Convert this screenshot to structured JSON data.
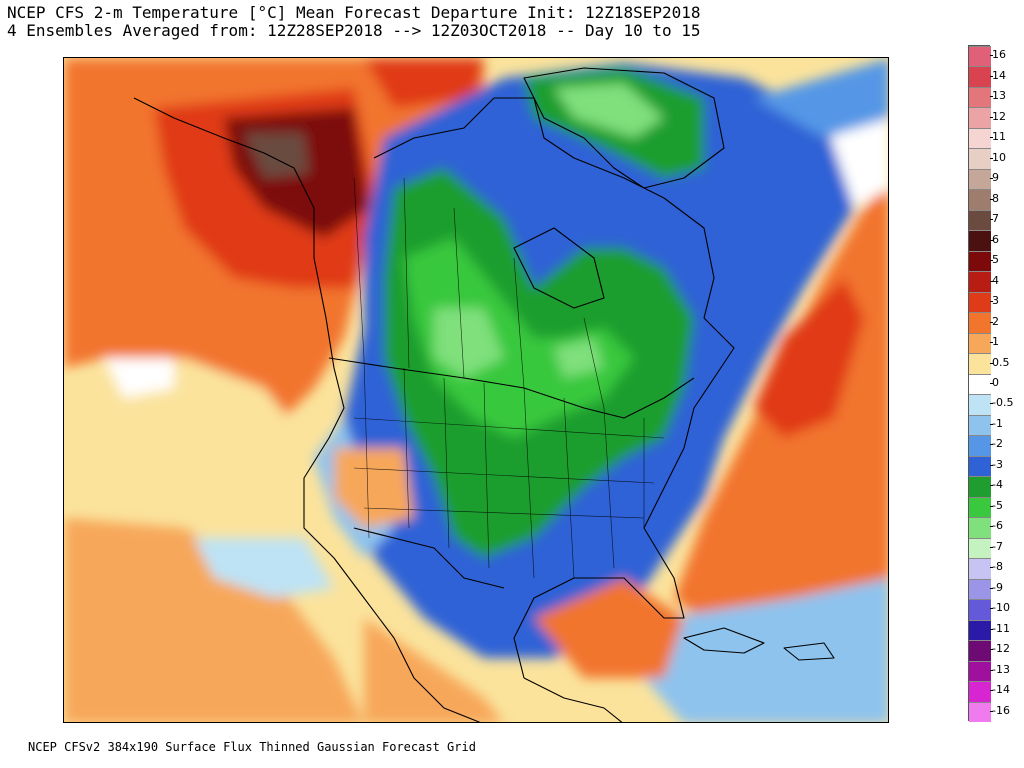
{
  "header": {
    "line1": "NCEP CFS 2-m Temperature [°C] Mean Forecast Departure Init: 12Z18SEP2018",
    "line2": "4 Ensembles Averaged from: 12Z28SEP2018 --> 12Z03OCT2018 -- Day 10 to 15"
  },
  "footer": {
    "text": "NCEP CFSv2 384x190 Surface Flux Thinned Gaussian Forecast Grid"
  },
  "colorbar": {
    "levels": [
      {
        "label": "16",
        "color": "#e0607a"
      },
      {
        "label": "14",
        "color": "#d9434f"
      },
      {
        "label": "13",
        "color": "#e2767a"
      },
      {
        "label": "12",
        "color": "#eca3a6"
      },
      {
        "label": "11",
        "color": "#f6d4d1"
      },
      {
        "label": "10",
        "color": "#e8cfc6"
      },
      {
        "label": "9",
        "color": "#c5a79a"
      },
      {
        "label": "8",
        "color": "#9e7d6f"
      },
      {
        "label": "7",
        "color": "#6b4b40"
      },
      {
        "label": "6",
        "color": "#4b1010"
      },
      {
        "label": "5",
        "color": "#7d0a0a"
      },
      {
        "label": "4",
        "color": "#b71d12"
      },
      {
        "label": "3",
        "color": "#e03b18"
      },
      {
        "label": "2",
        "color": "#f2752d"
      },
      {
        "label": "1",
        "color": "#f7a75a"
      },
      {
        "label": "0.5",
        "color": "#fbe39c"
      },
      {
        "label": "0",
        "color": "#ffffff"
      },
      {
        "label": "-0.5",
        "color": "#bde3f5"
      },
      {
        "label": "-1",
        "color": "#8ec3ee"
      },
      {
        "label": "-2",
        "color": "#5597e6"
      },
      {
        "label": "-3",
        "color": "#2e62d6"
      },
      {
        "label": "-4",
        "color": "#1f9e2f"
      },
      {
        "label": "-5",
        "color": "#39c83e"
      },
      {
        "label": "-6",
        "color": "#7fe07c"
      },
      {
        "label": "-7",
        "color": "#c4f2c0"
      },
      {
        "label": "-8",
        "color": "#c7c4f3"
      },
      {
        "label": "-9",
        "color": "#9b95e8"
      },
      {
        "label": "-10",
        "color": "#6459d8"
      },
      {
        "label": "-11",
        "color": "#2a1aa8"
      },
      {
        "label": "-12",
        "color": "#6e0a74"
      },
      {
        "label": "-13",
        "color": "#a0109f"
      },
      {
        "label": "-14",
        "color": "#d625d1"
      },
      {
        "label": "-16",
        "color": "#f07bef"
      }
    ]
  },
  "map": {
    "projection": "polar stereographic",
    "region": "North America",
    "variable": "2-m temperature anomaly"
  }
}
